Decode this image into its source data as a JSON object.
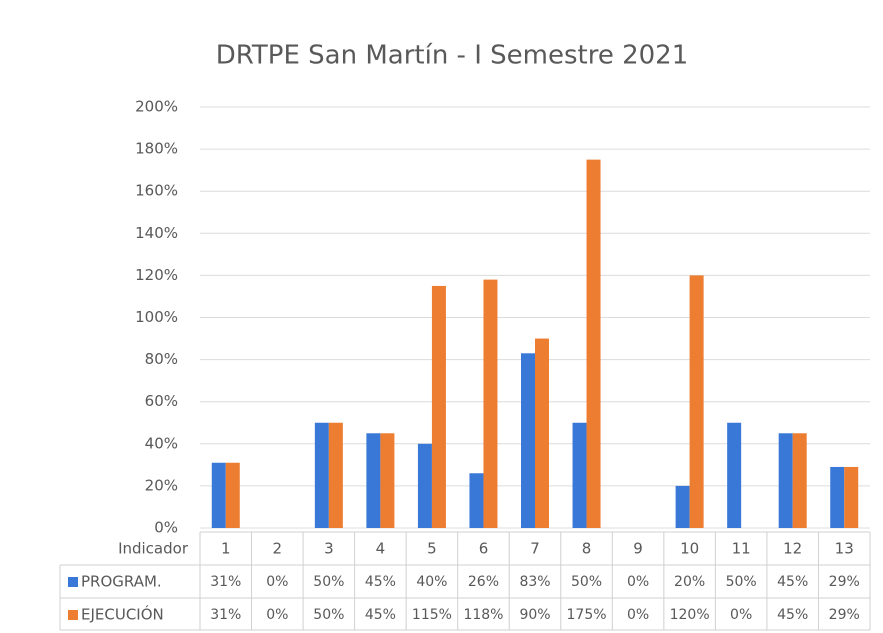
{
  "chart_data": {
    "type": "bar",
    "title": "DRTPE San Martín - I Semestre 2021",
    "category_label": "Indicador",
    "categories": [
      "1",
      "2",
      "3",
      "4",
      "5",
      "6",
      "7",
      "8",
      "9",
      "10",
      "11",
      "12",
      "13"
    ],
    "series": [
      {
        "name": "PROGRAM.",
        "color": "#3a78d8",
        "values": [
          31,
          0,
          50,
          45,
          40,
          26,
          83,
          50,
          0,
          20,
          50,
          45,
          29
        ],
        "value_labels": [
          "31%",
          "0%",
          "50%",
          "45%",
          "40%",
          "26%",
          "83%",
          "50%",
          "0%",
          "20%",
          "50%",
          "45%",
          "29%"
        ]
      },
      {
        "name": "EJECUCIÓN",
        "color": "#ed7d31",
        "values": [
          31,
          0,
          50,
          45,
          115,
          118,
          90,
          175,
          0,
          120,
          0,
          45,
          29
        ],
        "value_labels": [
          "31%",
          "0%",
          "50%",
          "45%",
          "115%",
          "118%",
          "90%",
          "175%",
          "0%",
          "120%",
          "0%",
          "45%",
          "29%"
        ]
      }
    ],
    "ylim": [
      0,
      200
    ],
    "yticks": [
      {
        "value": 0,
        "label": "0%"
      },
      {
        "value": 20,
        "label": "20%"
      },
      {
        "value": 40,
        "label": "40%"
      },
      {
        "value": 60,
        "label": "60%"
      },
      {
        "value": 80,
        "label": "80%"
      },
      {
        "value": 100,
        "label": "100%"
      },
      {
        "value": 120,
        "label": "120%"
      },
      {
        "value": 140,
        "label": "140%"
      },
      {
        "value": 160,
        "label": "160%"
      },
      {
        "value": 180,
        "label": "180%"
      },
      {
        "value": 200,
        "label": "200%"
      }
    ],
    "grid": true
  }
}
